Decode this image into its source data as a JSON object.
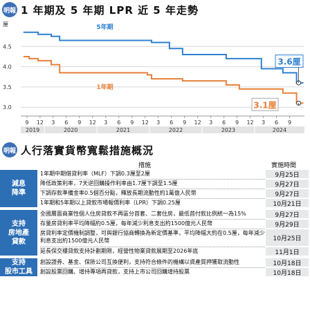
{
  "header": {
    "badge_text": "明報",
    "chart_title": "1 年期及 5 年期 LPR 近 5 年走勢",
    "table_title": "人行落實貨幣寬鬆措施概況"
  },
  "chart_data": {
    "type": "line",
    "unit_label": "厘",
    "ylim": [
      2.85,
      5.0
    ],
    "yticks": [
      3.0,
      3.5,
      4.0,
      4.5
    ],
    "x_month_ticks": [
      "9",
      "12",
      "3",
      "6",
      "9",
      "12",
      "3",
      "6",
      "9",
      "12",
      "3",
      "6",
      "9",
      "12",
      "3",
      "6",
      "9",
      "12",
      "3",
      "6",
      "9"
    ],
    "x_year_labels": [
      "2019",
      "2020",
      "2021",
      "2022",
      "2023",
      "2024"
    ],
    "grid": true,
    "colors": {
      "five_year": "#2f80d0",
      "one_year": "#e8803a"
    },
    "series": [
      {
        "name": "5年期",
        "end_label": "3.6厘",
        "x": [
          2019.6,
          2019.79,
          2019.88,
          2020.04,
          2020.13,
          2020.29,
          2022.04,
          2022.38,
          2022.63,
          2023.46,
          2024.13,
          2024.54,
          2024.8
        ],
        "y": [
          4.85,
          4.85,
          4.8,
          4.8,
          4.75,
          4.65,
          4.6,
          4.45,
          4.3,
          4.2,
          3.95,
          3.85,
          3.6
        ]
      },
      {
        "name": "1年期",
        "end_label": "3.1厘",
        "x": [
          2019.6,
          2019.71,
          2019.88,
          2020.04,
          2020.13,
          2020.29,
          2021.96,
          2022.04,
          2022.63,
          2023.46,
          2023.71,
          2024.54,
          2024.8
        ],
        "y": [
          4.25,
          4.2,
          4.15,
          4.15,
          4.05,
          3.85,
          3.8,
          3.7,
          3.65,
          3.55,
          3.45,
          3.35,
          3.1
        ]
      }
    ]
  },
  "table": {
    "col_measures": "措施",
    "col_date": "實施時間",
    "categories": [
      {
        "label": "減息\n降準",
        "rows": [
          {
            "text": "1年期中期借貸利率（MLF）下調0.3厘至2厘",
            "date": "9月25日"
          },
          {
            "text": "降低政策利率，7天逆回購操作利率由1.7厘下調至1.5厘",
            "date": "9月27日"
          },
          {
            "text": "下調存款準備金率0.5個百分點，釋放長期流動性約1萬億人民幣",
            "date": "9月27日"
          },
          {
            "text": "1年期和5年期以上貸款市場報價利率（LPR）下調0.25厘",
            "date": "10月21日"
          }
        ]
      },
      {
        "label": "支持\n房地產\n貸款",
        "rows": [
          {
            "text": "全國層面商業性個人住房貸款不再區分首套、二套住房，最低首付款比例統一為15%",
            "date": "9月27日"
          },
          {
            "text": "存量房貸利率平均降幅約0.5厘，每年減少利息支出約1500億元人民幣",
            "date": "9月29日"
          },
          {
            "text": "房貸利率定價機制調整，可與銀行協商轉換為新定價基準，平均降幅大約在0.5厘，每年減少利息支出約1500億元人民幣",
            "date": "10月25日"
          },
          {
            "text": "延長保交樓貸款支持計劃期限，經營性物業貸款展期至2026年底",
            "date": "11月1日"
          }
        ]
      },
      {
        "label": "支持\n股市工具",
        "rows": [
          {
            "text": "創設證券、基金、保險公司互換便利，支持符合條件的機構以資產質押獲取流動性",
            "date": "10月18日"
          },
          {
            "text": "創設股票回購、增持專項再貸款，支持上市公司回購增持股票",
            "date": "10月18日"
          }
        ]
      }
    ]
  }
}
